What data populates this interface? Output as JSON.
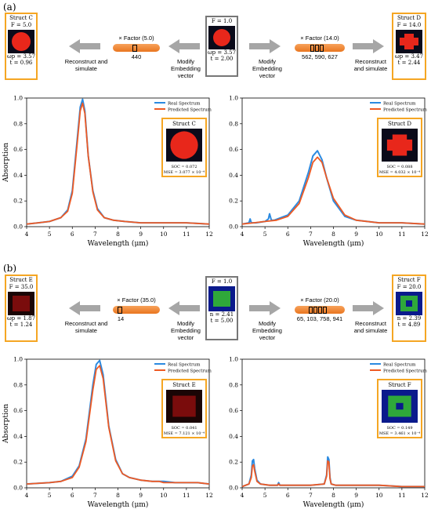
{
  "panels": [
    {
      "label": "(a)",
      "center": {
        "title": "F = 1.0",
        "line1": "ωp = 3.57",
        "line2": "t = 2.00",
        "theme": "red"
      },
      "left": {
        "title": "Struct C",
        "subtitle": "F = 5.0",
        "line1": "ωp = 3.57",
        "line2": "t = 0.96",
        "factor_label": "× Factor (5.0)",
        "indices": "440",
        "theme": "red-circle"
      },
      "right": {
        "title": "Struct D",
        "subtitle": "F = 14.0",
        "line1": "ωp = 3.47",
        "line2": "t = 2.44",
        "factor_label": "× Factor (14.0)",
        "indices": "562, 590, 627",
        "theme": "red-cross"
      },
      "flow_left_outer": "Reconstruct and simulate",
      "flow_left_inner": "Modify Embedding vector",
      "flow_right_inner": "Modify Embedding vector",
      "flow_right_outer": "Reconstruct and simulate"
    },
    {
      "label": "(b)",
      "center": {
        "title": "F = 1.0",
        "line1": "n = 2.41",
        "line2": "t = 5.00",
        "theme": "green"
      },
      "left": {
        "title": "Struct E",
        "subtitle": "F = 35.0",
        "line1": "ωp = 1.87",
        "line2": "t = 1.24",
        "factor_label": "× Factor (35.0)",
        "indices": "14",
        "theme": "darkred-square"
      },
      "right": {
        "title": "Struct F",
        "subtitle": "F = 20.0",
        "line1": "n = 2.39",
        "line2": "t = 4.89",
        "factor_label": "× Factor (20.0)",
        "indices": "65, 103, 758, 941",
        "theme": "green-ring"
      },
      "flow_left_outer": "Reconstruct and simulate",
      "flow_left_inner": "Modify Embedding vector",
      "flow_right_inner": "Modify Embedding vector",
      "flow_right_outer": "Reconstruct and simulate"
    }
  ],
  "colors": {
    "real": "#2b8ae0",
    "predicted": "#ee5a24",
    "accent": "#f5a623",
    "gray_arrow": "#a6a6a6"
  },
  "chart_data": [
    {
      "type": "line",
      "xlabel": "Wavelength (μm)",
      "ylabel": "Absorption",
      "xlim": [
        4,
        12
      ],
      "ylim": [
        0,
        1.0
      ],
      "xticks": [
        4,
        5,
        6,
        7,
        8,
        9,
        10,
        11,
        12
      ],
      "yticks": [
        0.0,
        0.2,
        0.4,
        0.6,
        0.8,
        1.0
      ],
      "legend": [
        "Real Spectrum",
        "Predicted Spectrum"
      ],
      "legend_position": "top-right",
      "inset": {
        "title": "Struct C",
        "soc": "SOC = 0.072",
        "mse": "MSE = 3.077 × 10⁻⁴",
        "theme": "red-circle"
      },
      "series": [
        {
          "name": "Real Spectrum",
          "x": [
            4,
            4.5,
            5,
            5.5,
            5.8,
            6.0,
            6.2,
            6.35,
            6.45,
            6.55,
            6.7,
            6.9,
            7.1,
            7.4,
            7.8,
            8.3,
            9,
            10,
            11,
            12
          ],
          "y": [
            0.02,
            0.03,
            0.04,
            0.07,
            0.13,
            0.28,
            0.65,
            0.93,
            0.99,
            0.9,
            0.55,
            0.28,
            0.14,
            0.07,
            0.05,
            0.04,
            0.03,
            0.03,
            0.03,
            0.02
          ]
        },
        {
          "name": "Predicted Spectrum",
          "x": [
            4,
            4.5,
            5,
            5.5,
            5.8,
            6.0,
            6.2,
            6.35,
            6.45,
            6.55,
            6.7,
            6.9,
            7.1,
            7.4,
            7.8,
            8.3,
            9,
            10,
            11,
            12
          ],
          "y": [
            0.02,
            0.03,
            0.04,
            0.07,
            0.12,
            0.26,
            0.62,
            0.9,
            0.96,
            0.88,
            0.55,
            0.27,
            0.13,
            0.07,
            0.05,
            0.04,
            0.03,
            0.03,
            0.03,
            0.02
          ]
        }
      ]
    },
    {
      "type": "line",
      "xlabel": "Wavelength (μm)",
      "ylabel": "",
      "xlim": [
        4,
        12
      ],
      "ylim": [
        0,
        1.0
      ],
      "xticks": [
        4,
        5,
        6,
        7,
        8,
        9,
        10,
        11,
        12
      ],
      "yticks": [
        0.0,
        0.2,
        0.4,
        0.6,
        0.8,
        1.0
      ],
      "legend": [
        "Real Spectrum",
        "Predicted Spectrum"
      ],
      "legend_position": "top-right",
      "inset": {
        "title": "Struct D",
        "soc": "SOC = 0.088",
        "mse": "MSE = 4.032 × 10⁻⁴",
        "theme": "red-cross"
      },
      "series": [
        {
          "name": "Real Spectrum",
          "x": [
            4,
            4.3,
            4.35,
            4.4,
            4.6,
            5.0,
            5.15,
            5.2,
            5.28,
            5.4,
            6.0,
            6.5,
            6.9,
            7.1,
            7.3,
            7.5,
            7.7,
            8.0,
            8.5,
            9,
            10,
            11,
            12
          ],
          "y": [
            0.02,
            0.03,
            0.06,
            0.03,
            0.03,
            0.04,
            0.06,
            0.1,
            0.05,
            0.05,
            0.09,
            0.2,
            0.42,
            0.55,
            0.59,
            0.52,
            0.38,
            0.2,
            0.08,
            0.05,
            0.03,
            0.03,
            0.02
          ]
        },
        {
          "name": "Predicted Spectrum",
          "x": [
            4,
            4.5,
            5,
            5.5,
            6.0,
            6.5,
            6.9,
            7.1,
            7.3,
            7.5,
            7.7,
            8.0,
            8.5,
            9,
            10,
            11,
            12
          ],
          "y": [
            0.02,
            0.03,
            0.04,
            0.05,
            0.08,
            0.18,
            0.38,
            0.5,
            0.54,
            0.5,
            0.38,
            0.22,
            0.09,
            0.05,
            0.03,
            0.03,
            0.02
          ]
        }
      ]
    },
    {
      "type": "line",
      "xlabel": "Wavelength (μm)",
      "ylabel": "Absorption",
      "xlim": [
        4,
        12
      ],
      "ylim": [
        0,
        1.0
      ],
      "xticks": [
        4,
        5,
        6,
        7,
        8,
        9,
        10,
        11,
        12
      ],
      "yticks": [
        0.0,
        0.2,
        0.4,
        0.6,
        0.8,
        1.0
      ],
      "legend": [
        "Real Spectrum",
        "Predicted Spectrum"
      ],
      "legend_position": "top-right",
      "inset": {
        "title": "Struct E",
        "soc": "SOC = 0.041",
        "mse": "MSE = 7.121 × 10⁻⁴",
        "theme": "darkred-square"
      },
      "series": [
        {
          "name": "Real Spectrum",
          "x": [
            4,
            5,
            5.5,
            6.0,
            6.3,
            6.6,
            6.9,
            7.05,
            7.2,
            7.35,
            7.6,
            7.9,
            8.2,
            8.5,
            9,
            9.5,
            9.8,
            10,
            10.5,
            11,
            11.5,
            12
          ],
          "y": [
            0.03,
            0.04,
            0.05,
            0.09,
            0.17,
            0.38,
            0.8,
            0.96,
            0.99,
            0.88,
            0.48,
            0.22,
            0.11,
            0.08,
            0.06,
            0.05,
            0.05,
            0.05,
            0.04,
            0.04,
            0.04,
            0.03
          ]
        },
        {
          "name": "Predicted Spectrum",
          "x": [
            4,
            5,
            5.5,
            6.0,
            6.3,
            6.6,
            6.9,
            7.05,
            7.2,
            7.35,
            7.6,
            7.9,
            8.2,
            8.5,
            9,
            9.5,
            9.8,
            10,
            10.5,
            11,
            11.5,
            12
          ],
          "y": [
            0.03,
            0.04,
            0.05,
            0.08,
            0.16,
            0.36,
            0.76,
            0.92,
            0.95,
            0.85,
            0.47,
            0.21,
            0.11,
            0.08,
            0.06,
            0.05,
            0.05,
            0.04,
            0.04,
            0.04,
            0.04,
            0.03
          ]
        }
      ]
    },
    {
      "type": "line",
      "xlabel": "Wavelength (μm)",
      "ylabel": "",
      "xlim": [
        4,
        12
      ],
      "ylim": [
        0,
        1.0
      ],
      "xticks": [
        4,
        5,
        6,
        7,
        8,
        9,
        10,
        11,
        12
      ],
      "yticks": [
        0.0,
        0.2,
        0.4,
        0.6,
        0.8,
        1.0
      ],
      "legend": [
        "Real Spectrum",
        "Predicted Spectrum"
      ],
      "legend_position": "top-right",
      "inset": {
        "title": "Struct F",
        "soc": "SOC = 0.149",
        "mse": "MSE = 3.461 × 10⁻⁴",
        "theme": "green-ring"
      },
      "series": [
        {
          "name": "Real Spectrum",
          "x": [
            4,
            4.3,
            4.4,
            4.45,
            4.5,
            4.55,
            4.65,
            4.8,
            5.2,
            5.55,
            5.6,
            5.65,
            6,
            7,
            7.6,
            7.7,
            7.75,
            7.8,
            7.85,
            7.9,
            8.1,
            9,
            10,
            11,
            12
          ],
          "y": [
            0.01,
            0.03,
            0.1,
            0.21,
            0.22,
            0.15,
            0.06,
            0.03,
            0.02,
            0.02,
            0.04,
            0.02,
            0.02,
            0.02,
            0.03,
            0.1,
            0.24,
            0.22,
            0.08,
            0.03,
            0.02,
            0.02,
            0.02,
            0.01,
            0.01
          ]
        },
        {
          "name": "Predicted Spectrum",
          "x": [
            4,
            4.3,
            4.4,
            4.45,
            4.5,
            4.55,
            4.65,
            4.8,
            5.2,
            5.55,
            5.6,
            5.65,
            6,
            7,
            7.6,
            7.7,
            7.75,
            7.8,
            7.85,
            7.9,
            8.1,
            9,
            10,
            11,
            12
          ],
          "y": [
            0.01,
            0.03,
            0.08,
            0.17,
            0.18,
            0.13,
            0.05,
            0.03,
            0.02,
            0.02,
            0.03,
            0.02,
            0.02,
            0.02,
            0.03,
            0.09,
            0.21,
            0.2,
            0.07,
            0.03,
            0.02,
            0.02,
            0.02,
            0.01,
            0.01
          ]
        }
      ]
    }
  ]
}
